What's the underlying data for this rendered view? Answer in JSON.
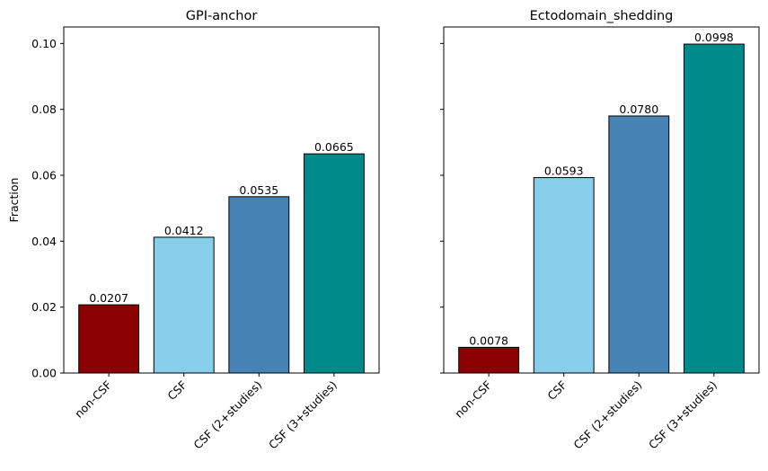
{
  "chart_data": [
    {
      "type": "bar",
      "title": "GPI-anchor",
      "ylabel": "Fraction",
      "xlabel": "",
      "categories": [
        "non-CSF",
        "CSF",
        "CSF (2+studies)",
        "CSF (3+studies)"
      ],
      "values": [
        0.0207,
        0.0412,
        0.0535,
        0.0665
      ],
      "value_labels": [
        "0.0207",
        "0.0412",
        "0.0535",
        "0.0665"
      ],
      "colors": [
        "#8b0000",
        "#87ceeb",
        "#4682b4",
        "#008b8b"
      ],
      "ylim": [
        0,
        0.105
      ],
      "yticks": [
        0.0,
        0.02,
        0.04,
        0.06,
        0.08,
        0.1
      ],
      "ytick_labels": [
        "0.00",
        "0.02",
        "0.04",
        "0.06",
        "0.08",
        "0.10"
      ],
      "grid": false
    },
    {
      "type": "bar",
      "title": "Ectodomain_shedding",
      "ylabel": "",
      "xlabel": "",
      "categories": [
        "non-CSF",
        "CSF",
        "CSF (2+studies)",
        "CSF (3+studies)"
      ],
      "values": [
        0.0078,
        0.0593,
        0.078,
        0.0998
      ],
      "value_labels": [
        "0.0078",
        "0.0593",
        "0.0780",
        "0.0998"
      ],
      "colors": [
        "#8b0000",
        "#87ceeb",
        "#4682b4",
        "#008b8b"
      ],
      "ylim": [
        0,
        0.105
      ],
      "yticks": [
        0.0,
        0.02,
        0.04,
        0.06,
        0.08,
        0.1
      ],
      "ytick_labels": [],
      "grid": false
    }
  ]
}
